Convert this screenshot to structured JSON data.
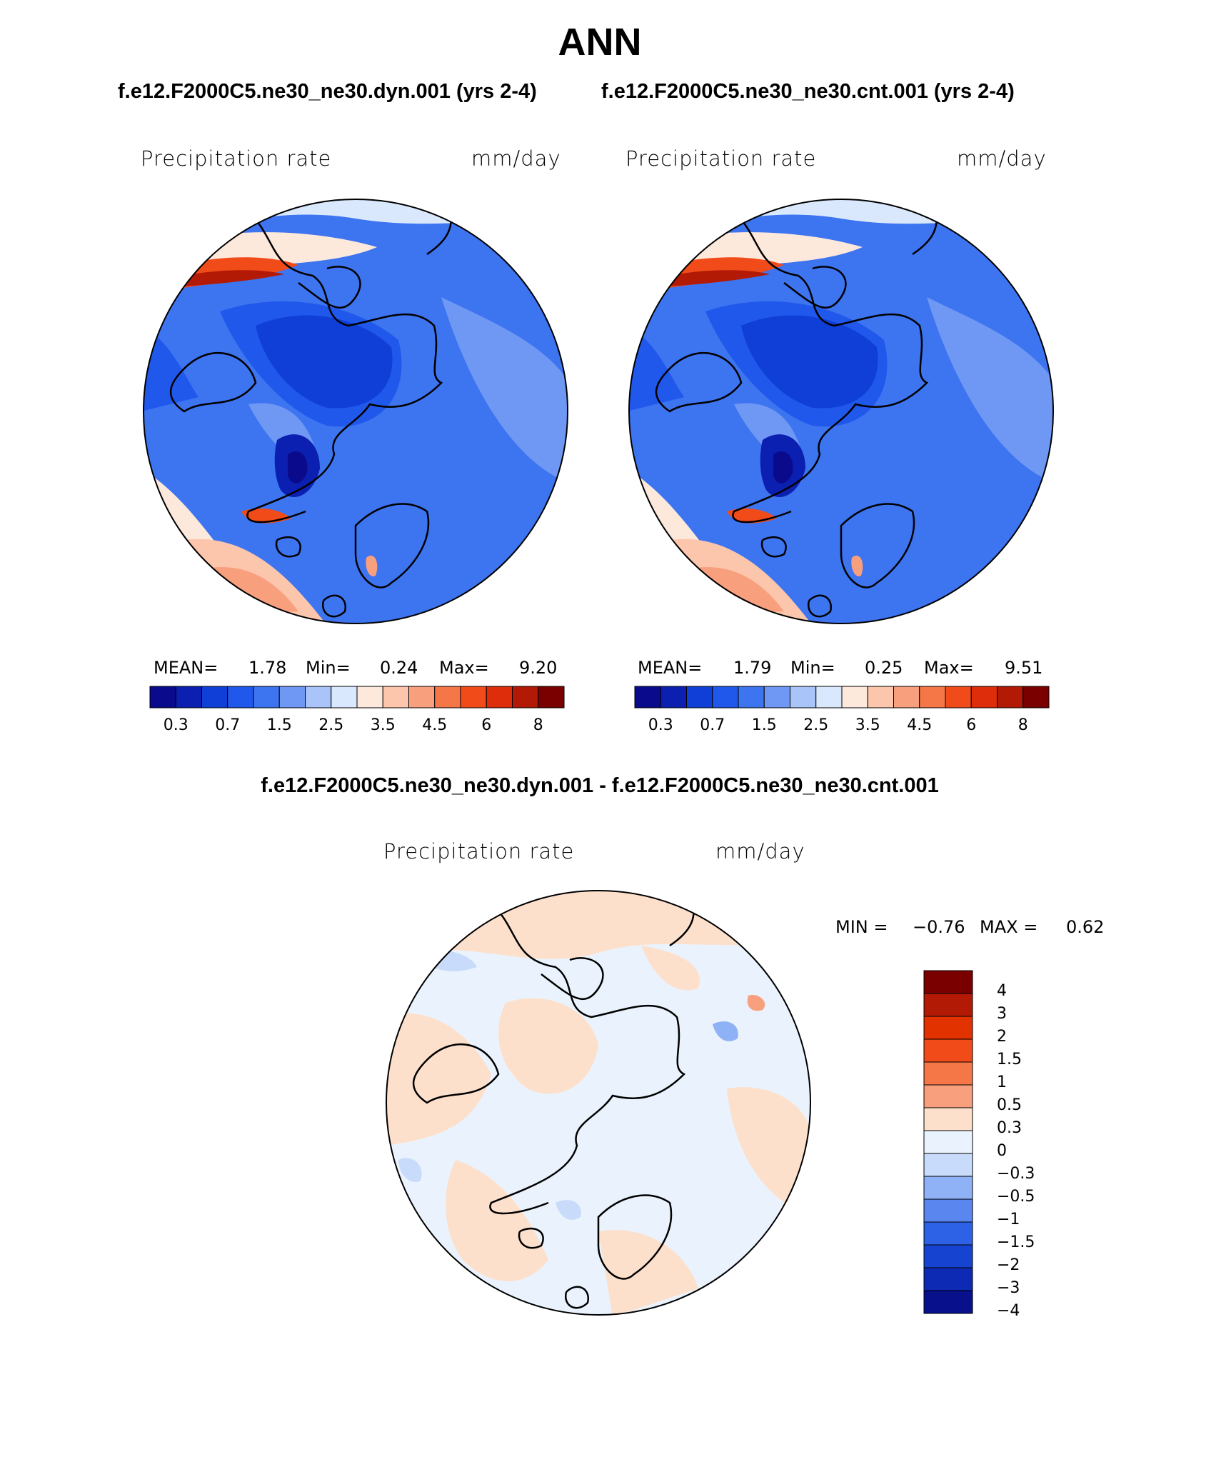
{
  "title": "ANN",
  "panels": [
    {
      "case_label": "f.e12.F2000C5.ne30_ne30.dyn.001 (yrs 2-4)",
      "variable": "Precipitation rate",
      "units": "mm/day",
      "stats": {
        "mean_label": "MEAN=",
        "mean": "1.78",
        "min_label": "Min=",
        "min": "0.24",
        "max_label": "Max=",
        "max": "9.20"
      },
      "colorbar_ticks": [
        "0.3",
        "0.7",
        "1.5",
        "2.5",
        "3.5",
        "4.5",
        "6",
        "8"
      ]
    },
    {
      "case_label": "f.e12.F2000C5.ne30_ne30.cnt.001 (yrs 2-4)",
      "variable": "Precipitation rate",
      "units": "mm/day",
      "stats": {
        "mean_label": "MEAN=",
        "mean": "1.79",
        "min_label": "Min=",
        "min": "0.25",
        "max_label": "Max=",
        "max": "9.51"
      },
      "colorbar_ticks": [
        "0.3",
        "0.7",
        "1.5",
        "2.5",
        "3.5",
        "4.5",
        "6",
        "8"
      ]
    }
  ],
  "difference": {
    "title": "f.e12.F2000C5.ne30_ne30.dyn.001 - f.e12.F2000C5.ne30_ne30.cnt.001",
    "variable": "Precipitation rate",
    "units": "mm/day",
    "min_label": "MIN =",
    "min": "−0.76",
    "max_label": "MAX =",
    "max": "0.62",
    "colorbar_ticks": [
      "4",
      "3",
      "2",
      "1.5",
      "1",
      "0.5",
      "0.3",
      "0",
      "−0.3",
      "−0.5",
      "−1",
      "−1.5",
      "−2",
      "−3",
      "−4"
    ]
  },
  "colors": {
    "abs_scale": [
      "#0a0a8c",
      "#0b1fb0",
      "#0f3fd6",
      "#2158ec",
      "#3d74f0",
      "#6e98f4",
      "#a8c4f8",
      "#d9e8fc",
      "#fde8dc",
      "#fcc6ad",
      "#f8a07e",
      "#f57748",
      "#f24b1a",
      "#de2d0a",
      "#b31a05",
      "#7a0000"
    ],
    "diff_scale": [
      "#7a0000",
      "#b31a05",
      "#e13200",
      "#f24b1a",
      "#f57748",
      "#f8a07e",
      "#fde0cc",
      "#eaf3fd",
      "#c8dbfa",
      "#8fb2f6",
      "#5a86f0",
      "#2e62e6",
      "#1644d0",
      "#0d2ab4",
      "#08108c"
    ]
  }
}
